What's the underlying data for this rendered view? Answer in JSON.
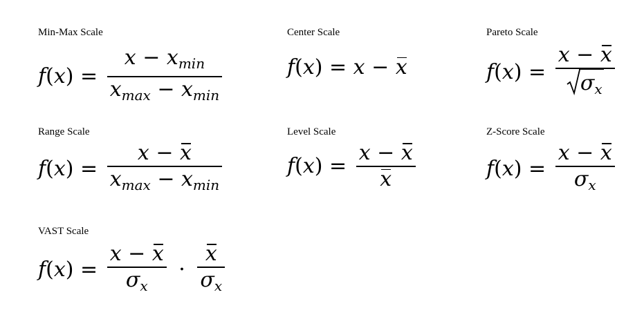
{
  "formulas": [
    {
      "title": "Min-Max Scale",
      "lhs": "f(x) =",
      "num": [
        "x",
        "−",
        "x",
        "min"
      ],
      "den": [
        "x",
        "max",
        "−",
        "x",
        "min"
      ]
    },
    {
      "title": "Center Scale",
      "rhs": "f(x) = x − x̄"
    },
    {
      "title": "Pareto Scale",
      "lhs": "f(x) =",
      "num": "x − x̄",
      "den": "√σx"
    },
    {
      "title": "Range Scale",
      "lhs": "f(x) =",
      "num": "x − x̄",
      "den": [
        "x",
        "max",
        "−",
        "x",
        "min"
      ]
    },
    {
      "title": "Level Scale",
      "lhs": "f(x) =",
      "num": "x − x̄",
      "den": "x̄"
    },
    {
      "title": "Z-Score Scale",
      "lhs": "f(x) =",
      "num": "x − x̄",
      "den": "σx"
    },
    {
      "title": "VAST Scale",
      "lhs": "f(x) =",
      "num": "x − x̄",
      "den": "σx",
      "num2": "x̄",
      "den2": "σx"
    }
  ]
}
